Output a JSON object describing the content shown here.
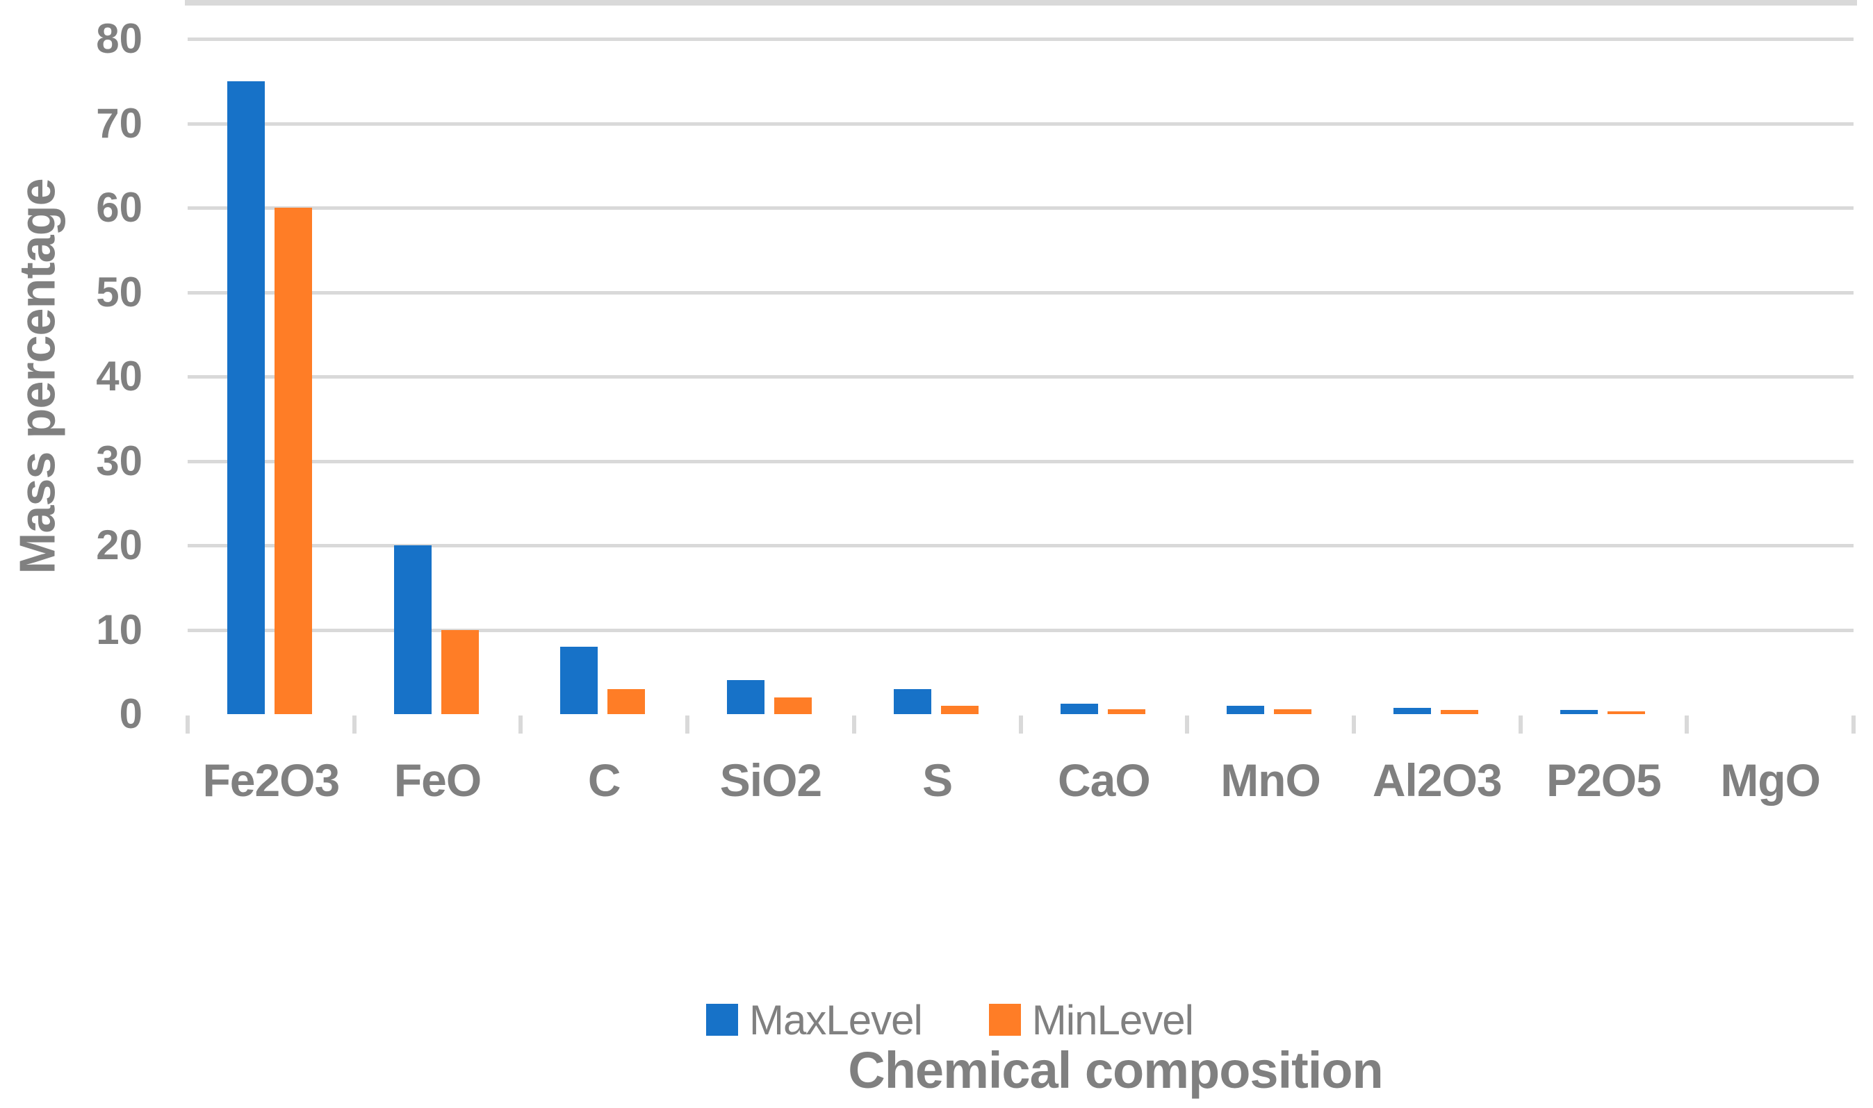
{
  "chart_data": {
    "type": "bar",
    "title": "",
    "xlabel": "Chemical composition",
    "ylabel": "Mass percentage",
    "categories": [
      "Fe2O3",
      "FeO",
      "C",
      "SiO2",
      "S",
      "CaO",
      "MnO",
      "Al2O3",
      "P2O5",
      "MgO"
    ],
    "series": [
      {
        "name": "MaxLevel",
        "color": "#1772C8",
        "values": [
          75,
          20,
          8,
          4,
          3,
          1.2,
          1,
          0.7,
          0.5,
          0
        ]
      },
      {
        "name": "MinLevel",
        "color": "#FF7D26",
        "values": [
          60,
          10,
          3,
          2,
          1,
          0.6,
          0.6,
          0.5,
          0.35,
          0
        ]
      }
    ],
    "ylim": [
      0,
      80
    ],
    "yticks": [
      0,
      10,
      20,
      30,
      40,
      50,
      60,
      70,
      80
    ],
    "grid": "horizontal",
    "legend_position": "bottom-center",
    "colors": {
      "grid": "#D9D9D9",
      "axis": "#D9D9D9",
      "text": "#808080",
      "background": "#FFFFFF"
    }
  }
}
